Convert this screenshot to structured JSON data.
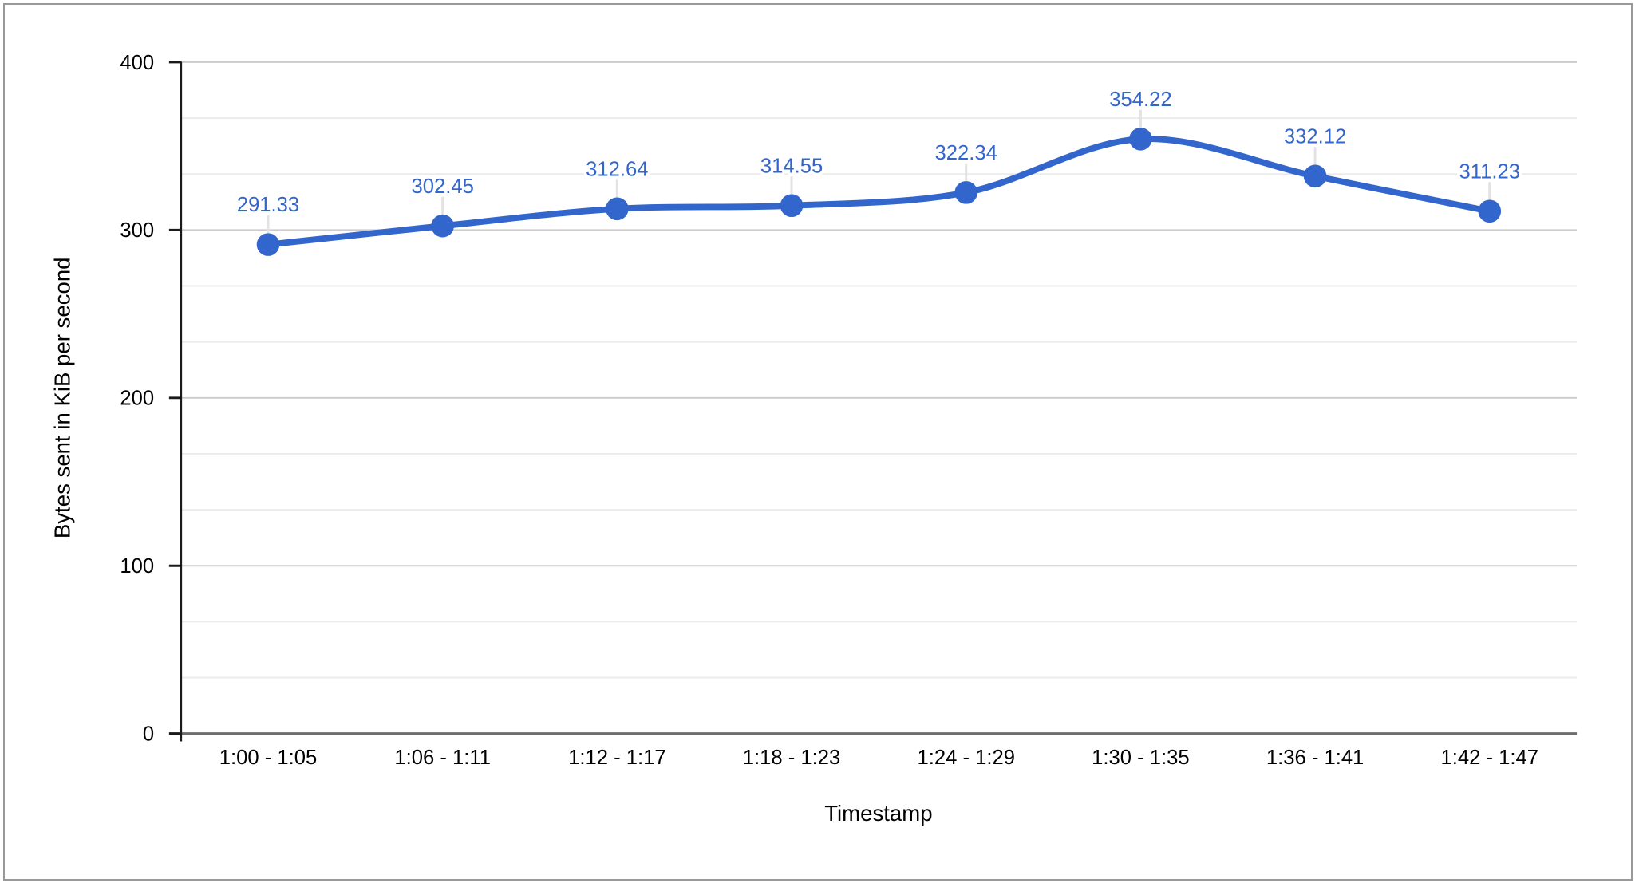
{
  "chart_data": {
    "type": "line",
    "title": "",
    "categories": [
      "1:00 - 1:05",
      "1:06 - 1:11",
      "1:12 - 1:17",
      "1:18 - 1:23",
      "1:24 - 1:29",
      "1:30 - 1:35",
      "1:36 - 1:41",
      "1:42 - 1:47"
    ],
    "series": [
      {
        "name": "Bytes sent",
        "values": [
          291.33,
          302.45,
          312.64,
          314.55,
          322.34,
          354.22,
          332.12,
          311.23
        ]
      }
    ],
    "data_labels": [
      "291.33",
      "302.45",
      "312.64",
      "314.55",
      "322.34",
      "354.22",
      "332.12",
      "311.23"
    ],
    "xlabel": "Timestamp",
    "ylabel": "Bytes sent in KiB per second",
    "ylim": [
      0,
      400
    ],
    "yticks": [
      0,
      100,
      200,
      300,
      400
    ],
    "ytick_labels": [
      "0",
      "100",
      "200",
      "300",
      "400"
    ],
    "minor_gridlines_per_interval": 2,
    "curve": "smooth",
    "grid": "on",
    "legend": "none",
    "marker": "circle",
    "colors": {
      "series": "#3366cc",
      "annotation_text": "#3366cc",
      "annotation_stem": "#e2e2e2",
      "gridline_major": "#cccccc",
      "gridline_minor": "#ebebeb",
      "baseline": "#6e6e6e",
      "axis_line": "#1a1a1a",
      "tick_text": "#000000",
      "frame_border": "#999999",
      "background": "#ffffff"
    }
  }
}
